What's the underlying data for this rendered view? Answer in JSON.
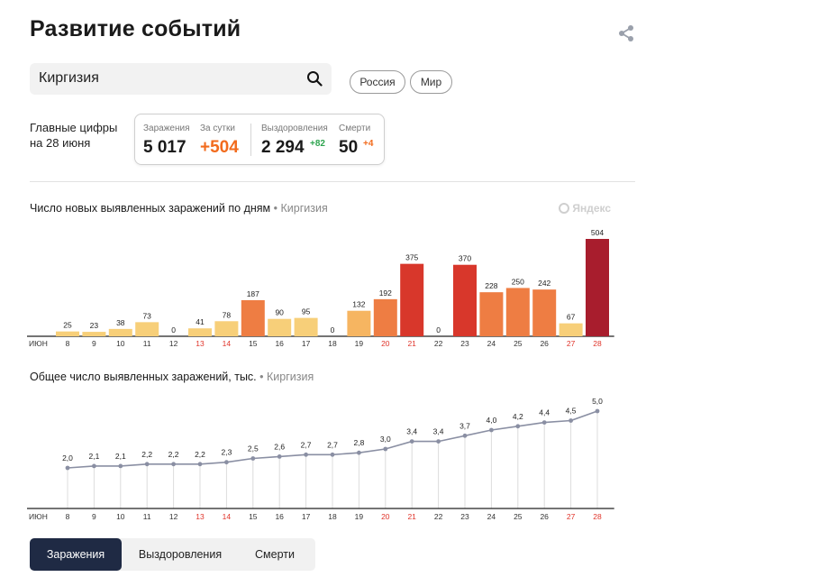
{
  "page": {
    "title": "Развитие событий"
  },
  "search": {
    "value": "Киргизия"
  },
  "filters": [
    "Россия",
    "Мир"
  ],
  "summary": {
    "label_line1": "Главные цифры",
    "label_line2": "на 28 июня",
    "cases_label": "Заражения",
    "cases_value": "5 017",
    "daily_label": "За сутки",
    "daily_value": "+504",
    "recovered_label": "Выздоровления",
    "recovered_value": "2 294",
    "recovered_delta": "+82",
    "deaths_label": "Смерти",
    "deaths_value": "50",
    "deaths_delta": "+4"
  },
  "watermark": "Яндекс",
  "tabs": [
    "Заражения",
    "Выздоровления",
    "Смерти"
  ],
  "colors": {
    "accent_orange": "#f26b1d",
    "green": "#2ea44f",
    "weekend_red": "#e0352b",
    "dark_tab": "#1f2a44",
    "line": "#8a8fa3"
  },
  "chart_data": [
    {
      "type": "bar",
      "title": "Число новых выявленных заражений по дням",
      "region": "Киргизия",
      "month_label": "июн",
      "categories": [
        "8",
        "9",
        "10",
        "11",
        "12",
        "13",
        "14",
        "15",
        "16",
        "17",
        "18",
        "19",
        "20",
        "21",
        "22",
        "23",
        "24",
        "25",
        "26",
        "27",
        "28"
      ],
      "weekend_categories": [
        "13",
        "14",
        "20",
        "21",
        "27",
        "28"
      ],
      "values": [
        25,
        23,
        38,
        73,
        0,
        41,
        78,
        187,
        90,
        95,
        0,
        132,
        192,
        375,
        0,
        370,
        228,
        250,
        242,
        67,
        504
      ],
      "ylim": [
        0,
        504
      ]
    },
    {
      "type": "line",
      "title": "Общее число выявленных заражений, тыс.",
      "region": "Киргизия",
      "month_label": "июн",
      "categories": [
        "8",
        "9",
        "10",
        "11",
        "12",
        "13",
        "14",
        "15",
        "16",
        "17",
        "18",
        "19",
        "20",
        "21",
        "22",
        "23",
        "24",
        "25",
        "26",
        "27",
        "28"
      ],
      "weekend_categories": [
        "13",
        "14",
        "20",
        "21",
        "27",
        "28"
      ],
      "values": [
        2.0,
        2.1,
        2.1,
        2.2,
        2.2,
        2.2,
        2.3,
        2.5,
        2.6,
        2.7,
        2.7,
        2.8,
        3.0,
        3.4,
        3.4,
        3.7,
        4.0,
        4.2,
        4.4,
        4.5,
        5.0
      ],
      "value_labels": [
        "2,0",
        "2,1",
        "2,1",
        "2,2",
        "2,2",
        "2,2",
        "2,3",
        "2,5",
        "2,6",
        "2,7",
        "2,7",
        "2,8",
        "3,0",
        "3,4",
        "3,4",
        "3,7",
        "4,0",
        "4,2",
        "4,4",
        "4,5",
        "5,0"
      ]
    }
  ]
}
